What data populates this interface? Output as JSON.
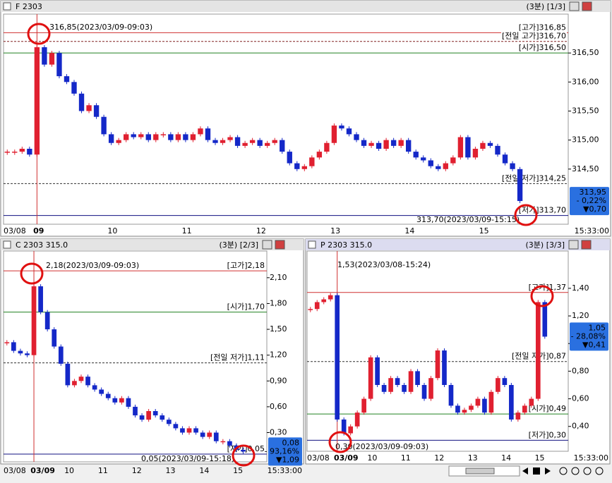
{
  "chart_data": [
    {
      "type": "candlestick",
      "title": "F 2303",
      "header_right": "(3분) [1/3]",
      "time_label": "15:33:00",
      "categories": [
        "03/08",
        null,
        null,
        null,
        "09",
        null,
        null,
        null,
        null,
        null,
        null,
        null,
        null,
        null,
        "10",
        null,
        null,
        null,
        null,
        null,
        null,
        null,
        null,
        null,
        "11",
        null,
        null,
        null,
        null,
        null,
        null,
        null,
        null,
        null,
        "12",
        null,
        null,
        null,
        null,
        null,
        null,
        null,
        null,
        null,
        "13",
        null,
        null,
        null,
        null,
        null,
        null,
        null,
        null,
        null,
        "14",
        null,
        null,
        null,
        null,
        null,
        null,
        null,
        null,
        null,
        "15",
        null,
        null,
        null,
        null,
        null
      ],
      "values": [
        314.8,
        314.8,
        314.85,
        314.75,
        316.6,
        316.3,
        316.5,
        316.1,
        316.0,
        315.8,
        315.5,
        315.6,
        315.4,
        315.1,
        314.95,
        315.0,
        315.1,
        315.05,
        315.1,
        315.0,
        315.1,
        315.1,
        315.0,
        315.1,
        315.0,
        315.1,
        315.2,
        315.0,
        314.95,
        315.0,
        315.05,
        314.9,
        314.95,
        315.0,
        314.9,
        314.95,
        315.0,
        314.8,
        314.6,
        314.5,
        314.55,
        314.7,
        314.8,
        314.95,
        315.25,
        315.2,
        315.1,
        315.0,
        314.9,
        314.95,
        314.85,
        315.0,
        314.9,
        315.0,
        314.8,
        314.7,
        314.65,
        314.55,
        314.5,
        314.6,
        314.7,
        315.05,
        314.7,
        314.85,
        314.95,
        314.9,
        314.75,
        314.6,
        314.5,
        313.95
      ],
      "ylim": [
        313.55,
        317.17
      ],
      "yticks": [
        {
          "value": 314.5,
          "label": "314,50"
        },
        {
          "value": 315.0,
          "label": "315,00"
        },
        {
          "value": 315.5,
          "label": "315,50"
        },
        {
          "value": 316.0,
          "label": "316,00"
        },
        {
          "value": 316.5,
          "label": "316,50"
        }
      ],
      "levels": [
        {
          "label": "[고가]316,85",
          "value": 316.85,
          "color": "#d03030",
          "dashed": false
        },
        {
          "label": "[전일 고가]316,70",
          "value": 316.7,
          "color": "#802020",
          "dashed": true
        },
        {
          "label": "[시가]316,50",
          "value": 316.5,
          "color": "#208020",
          "dashed": false
        },
        {
          "label": "[전일 저가]314,25",
          "value": 314.25,
          "color": "#303030",
          "dashed": true
        },
        {
          "label": "[저가]313,70",
          "value": 313.7,
          "color": "#101080",
          "dashed": false
        }
      ],
      "annotations": [
        "316,85(2023/03/09-09:03)",
        "313,70(2023/03/09-15:15)"
      ],
      "price_box": [
        "313,95",
        "- 0,22%",
        "▼0,70"
      ]
    },
    {
      "type": "candlestick",
      "title": "C 2303 315.0",
      "header_right": "(3분) [2/3]",
      "time_label": "15:33:00",
      "categories": [
        "03/08",
        null,
        null,
        null,
        "03/09",
        null,
        null,
        null,
        null,
        "10",
        null,
        null,
        null,
        null,
        "11",
        null,
        null,
        null,
        null,
        "12",
        null,
        null,
        null,
        null,
        "13",
        null,
        null,
        null,
        null,
        "14",
        null,
        null,
        null,
        null,
        "15",
        null
      ],
      "values": [
        1.35,
        1.25,
        1.22,
        1.2,
        2.0,
        1.7,
        1.5,
        1.3,
        1.1,
        0.85,
        0.9,
        0.95,
        0.85,
        0.8,
        0.75,
        0.7,
        0.65,
        0.7,
        0.6,
        0.5,
        0.45,
        0.55,
        0.5,
        0.45,
        0.4,
        0.35,
        0.3,
        0.35,
        0.3,
        0.25,
        0.3,
        0.2,
        0.2,
        0.15,
        0.1,
        0.08
      ],
      "ylim": [
        -0.04,
        2.41
      ],
      "yticks": [
        {
          "value": 0.3,
          "label": "0,30"
        },
        {
          "value": 0.6,
          "label": "0,60"
        },
        {
          "value": 0.9,
          "label": "0,90"
        },
        {
          "value": 1.2,
          "label": "1,20"
        },
        {
          "value": 1.5,
          "label": "1,50"
        },
        {
          "value": 1.8,
          "label": "1,80"
        },
        {
          "value": 2.1,
          "label": "2,10"
        }
      ],
      "levels": [
        {
          "label": "[고가]2,18",
          "value": 2.18,
          "color": "#d03030",
          "dashed": false
        },
        {
          "label": "[시가]1,70",
          "value": 1.7,
          "color": "#208020",
          "dashed": false
        },
        {
          "label": "[전일 저가]1,11",
          "value": 1.11,
          "color": "#303030",
          "dashed": true
        },
        {
          "label": "[저가]0,05",
          "value": 0.05,
          "color": "#101080",
          "dashed": false
        }
      ],
      "annotations": [
        "2,18(2023/03/09-09:03)",
        "0,05(2023/03/09-15:18)"
      ],
      "price_box": [
        "0,08",
        "- 93,16%",
        "▼1,09"
      ]
    },
    {
      "type": "candlestick",
      "title": "P 2303 315.0",
      "header_right": "(3분) [3/3]",
      "time_label": "15:33:00",
      "categories": [
        "03/08",
        null,
        null,
        null,
        "03/09",
        null,
        null,
        null,
        null,
        "10",
        null,
        null,
        null,
        null,
        "11",
        null,
        null,
        null,
        null,
        "12",
        null,
        null,
        null,
        null,
        "13",
        null,
        null,
        null,
        null,
        "14",
        null,
        null,
        null,
        null,
        "15",
        null
      ],
      "values": [
        1.25,
        1.3,
        1.32,
        1.35,
        0.45,
        0.35,
        0.4,
        0.5,
        0.6,
        0.9,
        0.7,
        0.65,
        0.75,
        0.7,
        0.65,
        0.8,
        0.7,
        0.6,
        0.75,
        0.95,
        0.7,
        0.55,
        0.5,
        0.52,
        0.55,
        0.6,
        0.5,
        0.65,
        0.75,
        0.7,
        0.45,
        0.5,
        0.55,
        0.6,
        1.3,
        1.05
      ],
      "ylim": [
        0.22,
        1.67
      ],
      "yticks": [
        {
          "value": 0.4,
          "label": "0,40"
        },
        {
          "value": 0.6,
          "label": "0,60"
        },
        {
          "value": 0.8,
          "label": "0,80"
        },
        {
          "value": 1.0,
          "label": "1,00"
        },
        {
          "value": 1.2,
          "label": "1,20"
        },
        {
          "value": 1.4,
          "label": "1,40"
        }
      ],
      "levels": [
        {
          "label": "[고가]1,37",
          "value": 1.37,
          "color": "#d03030",
          "dashed": false
        },
        {
          "label": "[전일 저가]0,87",
          "value": 0.87,
          "color": "#303030",
          "dashed": true
        },
        {
          "label": "[시가]0,49",
          "value": 0.49,
          "color": "#208020",
          "dashed": false
        },
        {
          "label": "[저가]0,30",
          "value": 0.3,
          "color": "#101080",
          "dashed": false
        }
      ],
      "annotations": [
        "1,53(2023/03/08-15:24)",
        "0,30(2023/03/09-09:03)"
      ],
      "price_box": [
        "1,05",
        "- 28,08%",
        "▼0,41"
      ]
    }
  ]
}
